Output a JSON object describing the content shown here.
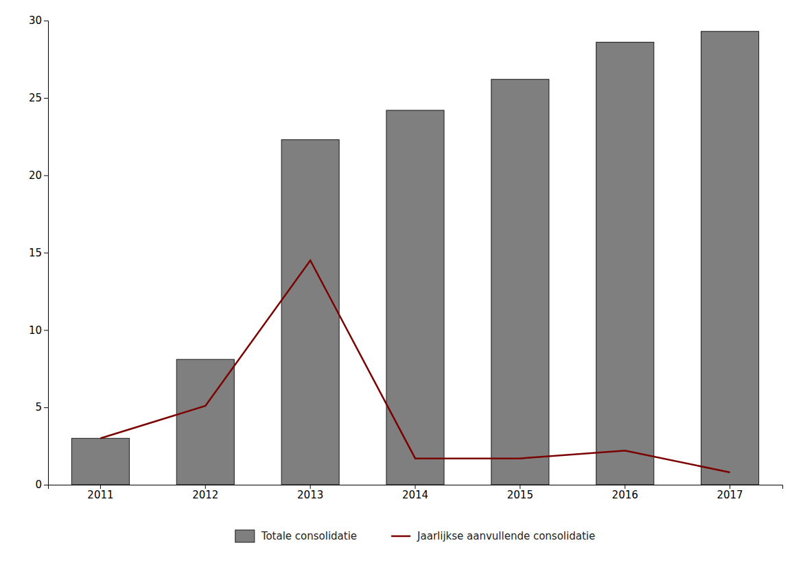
{
  "chart_data": {
    "type": "bar",
    "categories": [
      "2011",
      "2012",
      "2013",
      "2014",
      "2015",
      "2016",
      "2017"
    ],
    "series": [
      {
        "name": "Totale consolidatie",
        "type": "bar",
        "color": "#7F7F7F",
        "values": [
          3.0,
          8.1,
          22.3,
          24.2,
          26.2,
          28.6,
          29.3
        ]
      },
      {
        "name": "Jaarlijkse aanvullende consolidatie",
        "type": "line",
        "color": "#7B0000",
        "values": [
          3.0,
          5.1,
          14.5,
          1.7,
          1.7,
          2.2,
          0.8
        ]
      }
    ],
    "ylim": [
      0,
      30
    ],
    "yticks": [
      0,
      5,
      10,
      15,
      20,
      25,
      30
    ],
    "grid": false,
    "legend": "bottom"
  }
}
